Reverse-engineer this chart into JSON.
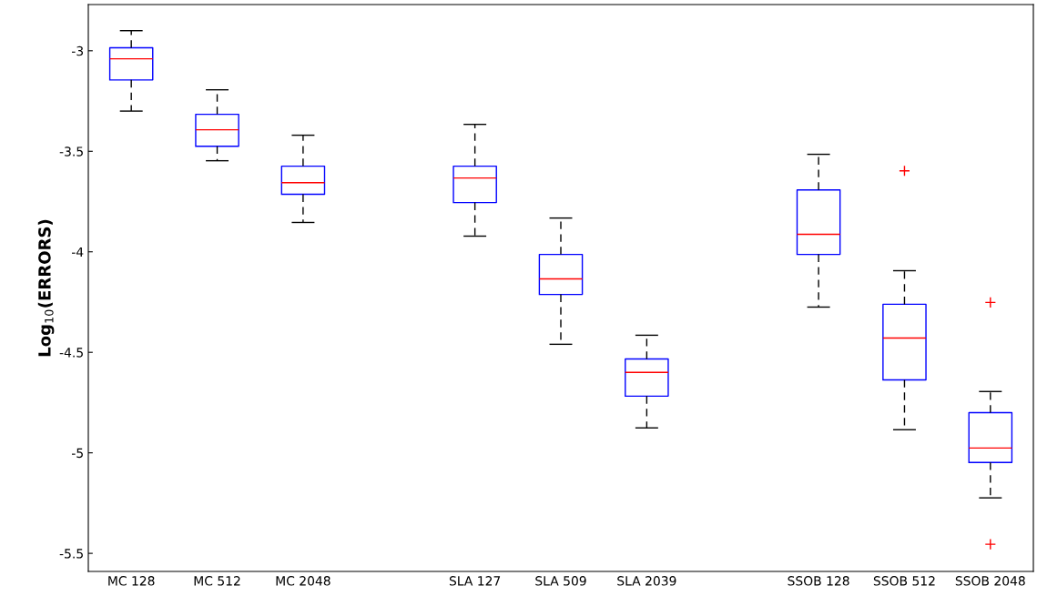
{
  "chart_data": {
    "type": "box",
    "ylabel": "Log$_{10}$(ERRORS)",
    "color": "#0000ff",
    "categories": [
      "MC 128",
      "MC 512",
      "MC 2048",
      null,
      "SLA 127",
      "SLA 509",
      "SLA 2039",
      null,
      "SSOB 128",
      "SSOB 512",
      "SSOB 2048"
    ],
    "boxes": [
      {
        "low": -3.3,
        "q1": -3.145,
        "median": -3.04,
        "q3": -2.985,
        "high": -2.9
      },
      {
        "low": -3.547,
        "q1": -3.475,
        "median": -3.393,
        "q3": -3.316,
        "high": -3.194
      },
      {
        "low": -3.854,
        "q1": -3.714,
        "median": -3.656,
        "q3": -3.574,
        "high": -3.42
      },
      null,
      {
        "low": -3.922,
        "q1": -3.755,
        "median": -3.633,
        "q3": -3.574,
        "high": -3.366
      },
      {
        "low": -4.46,
        "q1": -4.212,
        "median": -4.135,
        "q3": -4.013,
        "high": -3.832
      },
      {
        "low": -4.876,
        "q1": -4.718,
        "median": -4.6,
        "q3": -4.533,
        "high": -4.415
      },
      null,
      {
        "low": -4.275,
        "q1": -4.013,
        "median": -3.913,
        "q3": -3.692,
        "high": -3.515
      },
      {
        "low": -4.885,
        "q1": -4.637,
        "median": -4.429,
        "q3": -4.261,
        "high": -4.094,
        "outliers": [
          -3.597
        ]
      },
      {
        "low": -5.224,
        "q1": -5.048,
        "median": -4.976,
        "q3": -4.8,
        "high": -4.695,
        "outliers": [
          -4.252,
          -5.455
        ]
      }
    ],
    "ylim": [
      -5.59,
      -2.77
    ],
    "yticks": [
      -5.5,
      -5,
      -4.5,
      -4,
      -3.5,
      -3
    ],
    "grid": false,
    "legend": false
  }
}
